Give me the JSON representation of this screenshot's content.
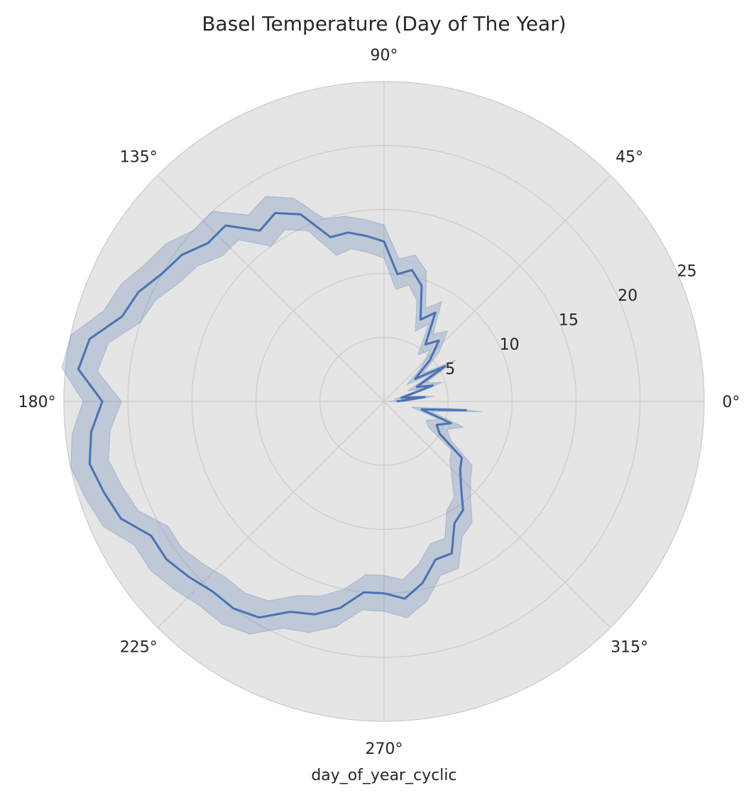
{
  "chart_data": {
    "type": "line",
    "projection": "polar",
    "title": "Basel Temperature (Day of The Year)",
    "xlabel": "day_of_year_cyclic",
    "ylabel": "",
    "theta_unit": "degrees",
    "theta_tick_labels": [
      "0°",
      "45°",
      "90°",
      "135°",
      "180°",
      "225°",
      "270°",
      "315°"
    ],
    "theta_ticks": [
      0,
      45,
      90,
      135,
      180,
      225,
      270,
      315
    ],
    "r_tick_labels": [
      "5",
      "10",
      "15",
      "20",
      "25"
    ],
    "r_ticks": [
      5,
      10,
      15,
      20,
      25
    ],
    "rlim": [
      0,
      25
    ],
    "grid": true,
    "legend": "none",
    "series": [
      {
        "color": "#4c72b0",
        "band_color": "#4c72b0",
        "theta": [
          0,
          6,
          12,
          18,
          24,
          30,
          36,
          42,
          48,
          54,
          60,
          66,
          72,
          78,
          84,
          90,
          96,
          102,
          108,
          114,
          120,
          126,
          132,
          138,
          144,
          150,
          156,
          162,
          168,
          174,
          180,
          186,
          192,
          198,
          204,
          210,
          216,
          222,
          228,
          234,
          240,
          246,
          252,
          258,
          264,
          270,
          276,
          282,
          288,
          294,
          300,
          306,
          312,
          318,
          324,
          330,
          336,
          342,
          348,
          354
        ],
        "r": [
          1.0,
          3.2,
          1.4,
          4.0,
          2.8,
          5.5,
          3.0,
          4.8,
          6.4,
          5.5,
          8.0,
          7.0,
          9.5,
          10.5,
          10.0,
          12.5,
          13.0,
          13.5,
          13.5,
          16.0,
          17.0,
          16.5,
          18.5,
          18.5,
          19.5,
          20.0,
          21.0,
          21.5,
          23.5,
          24.0,
          22.0,
          23.0,
          23.5,
          23.0,
          22.5,
          21.0,
          21.0,
          20.5,
          20.0,
          20.0,
          19.5,
          18.0,
          17.5,
          16.5,
          15.0,
          15.0,
          15.5,
          14.5,
          13.0,
          13.0,
          11.0,
          10.5,
          9.0,
          8.0,
          7.5,
          5.0,
          4.5,
          5.5,
          3.0,
          6.5
        ],
        "lower": [
          0.4,
          2.4,
          0.8,
          3.2,
          2.0,
          4.5,
          2.2,
          3.8,
          5.4,
          4.5,
          7.0,
          6.0,
          8.3,
          9.3,
          8.8,
          11.2,
          11.7,
          12.2,
          12.0,
          14.6,
          15.5,
          15.0,
          17.0,
          17.0,
          18.0,
          18.5,
          19.5,
          20.0,
          22.0,
          22.5,
          20.5,
          21.5,
          22.0,
          21.5,
          21.0,
          19.5,
          19.5,
          19.0,
          18.5,
          18.5,
          18.0,
          16.6,
          16.0,
          15.0,
          13.6,
          13.6,
          14.0,
          13.0,
          11.7,
          11.7,
          9.8,
          9.3,
          7.9,
          6.9,
          6.5,
          4.0,
          3.6,
          4.5,
          2.2,
          5.3
        ],
        "upper": [
          1.6,
          4.0,
          2.0,
          4.8,
          3.6,
          6.5,
          3.8,
          5.8,
          7.4,
          6.5,
          9.0,
          8.0,
          10.7,
          11.7,
          11.2,
          13.8,
          14.3,
          14.8,
          15.0,
          17.4,
          18.5,
          18.0,
          20.0,
          20.0,
          21.0,
          21.5,
          22.5,
          23.0,
          25.0,
          25.3,
          23.5,
          24.5,
          25.0,
          24.5,
          24.0,
          22.5,
          22.5,
          22.0,
          21.5,
          21.5,
          21.0,
          19.4,
          19.0,
          18.0,
          16.4,
          16.4,
          17.0,
          16.0,
          14.3,
          14.3,
          12.2,
          11.7,
          10.1,
          9.1,
          8.5,
          6.0,
          5.4,
          6.5,
          3.8,
          7.7
        ]
      }
    ]
  }
}
